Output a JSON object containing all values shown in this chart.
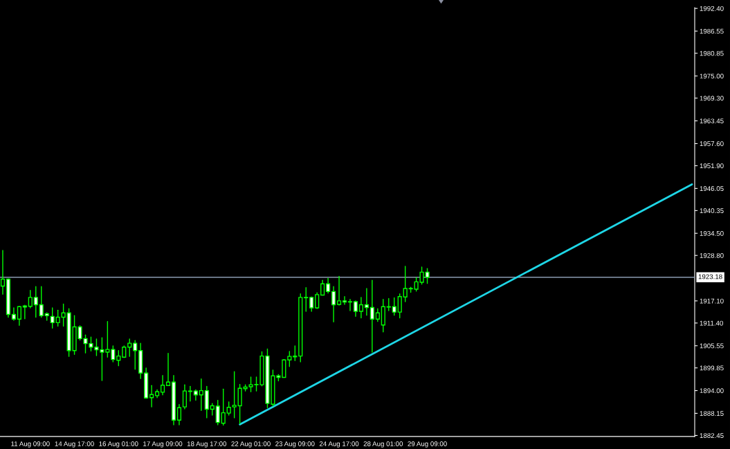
{
  "chart_data": {
    "type": "candlestick",
    "color": "#00ff00",
    "categories": [
      null,
      null,
      null,
      null,
      null,
      "11 Aug 09:00",
      null,
      null,
      null,
      null,
      null,
      null,
      null,
      "14 Aug 17:00",
      null,
      null,
      null,
      null,
      null,
      null,
      null,
      "16 Aug 01:00",
      null,
      null,
      null,
      null,
      null,
      null,
      null,
      "17 Aug 09:00",
      null,
      null,
      null,
      null,
      null,
      null,
      null,
      "18 Aug 17:00",
      null,
      null,
      null,
      null,
      null,
      null,
      null,
      "22 Aug 01:00",
      null,
      null,
      null,
      null,
      null,
      null,
      null,
      "23 Aug 09:00",
      null,
      null,
      null,
      null,
      null,
      null,
      null,
      "24 Aug 17:00",
      null,
      null,
      null,
      null,
      null,
      null,
      null,
      "28 Aug 01:00",
      null,
      null,
      null,
      null,
      null,
      null,
      null,
      "29 Aug 09:00",
      null,
      null,
      null,
      null,
      null,
      null,
      null,
      null,
      null,
      null,
      null,
      null,
      null,
      null,
      null,
      null,
      null,
      null,
      null,
      null,
      null,
      null,
      null,
      null,
      null,
      null,
      null,
      null,
      null,
      null,
      null,
      null,
      null,
      null,
      null,
      null,
      null,
      null,
      null,
      null,
      null,
      null,
      null,
      null,
      null,
      null,
      null,
      null
    ],
    "ohlc": [
      [
        1920.9,
        1930.1,
        1918.8,
        1922.7
      ],
      [
        1922.7,
        1922.8,
        1912.9,
        1913.6
      ],
      [
        1913.6,
        1915.3,
        1912.1,
        1912.4
      ],
      [
        1912.4,
        1915.7,
        1910.8,
        1915.6
      ],
      [
        1915.8,
        1916.0,
        1912.5,
        1915.5
      ],
      [
        1915.7,
        1919.8,
        1915.3,
        1918.0
      ],
      [
        1918.0,
        1920.8,
        1912.9,
        1916.1
      ],
      [
        1916.1,
        1920.8,
        1912.9,
        1913.3
      ],
      [
        1913.8,
        1914.0,
        1912.1,
        1913.3
      ],
      [
        1913.1,
        1915.3,
        1910.1,
        1911.5
      ],
      [
        1911.5,
        1914.7,
        1910.6,
        1912.9
      ],
      [
        1912.9,
        1916.3,
        1910.6,
        1914.0
      ],
      [
        1914.0,
        1915.1,
        1902.8,
        1904.3
      ],
      [
        1904.3,
        1913.3,
        1903.3,
        1910.4
      ],
      [
        1910.4,
        1910.7,
        1907.0,
        1907.4
      ],
      [
        1907.4,
        1908.3,
        1903.7,
        1906.1
      ],
      [
        1906.1,
        1907.8,
        1904.2,
        1905.2
      ],
      [
        1905.2,
        1907.3,
        1903.0,
        1904.5
      ],
      [
        1904.5,
        1907.6,
        1896.6,
        1903.9
      ],
      [
        1903.9,
        1911.8,
        1902.6,
        1904.6
      ],
      [
        1904.6,
        1905.5,
        1901.4,
        1902.0
      ],
      [
        1901.8,
        1904.3,
        1900.4,
        1902.9
      ],
      [
        1902.6,
        1905.5,
        1902.5,
        1905.2
      ],
      [
        1905.2,
        1907.3,
        1902.8,
        1906.2
      ],
      [
        1906.2,
        1906.9,
        1899.5,
        1904.3
      ],
      [
        1904.3,
        1906.2,
        1897.1,
        1898.5
      ],
      [
        1898.5,
        1899.8,
        1892.0,
        1892.1
      ],
      [
        1892.2,
        1895.3,
        1889.8,
        1893.0
      ],
      [
        1892.7,
        1894.2,
        1892.2,
        1893.7
      ],
      [
        1893.6,
        1897.9,
        1892.9,
        1895.4
      ],
      [
        1895.3,
        1903.6,
        1895.3,
        1896.2
      ],
      [
        1896.2,
        1897.9,
        1885.2,
        1886.4
      ],
      [
        1886.4,
        1890.4,
        1885.2,
        1889.6
      ],
      [
        1889.8,
        1895.5,
        1889.3,
        1893.9
      ],
      [
        1893.8,
        1895.1,
        1891.3,
        1893.9
      ],
      [
        1893.9,
        1894.2,
        1891.5,
        1892.9
      ],
      [
        1892.9,
        1897.0,
        1888.9,
        1894.0
      ],
      [
        1894.0,
        1895.1,
        1887.0,
        1889.2
      ],
      [
        1889.2,
        1890.7,
        1887.7,
        1890.1
      ],
      [
        1890.0,
        1891.5,
        1885.2,
        1885.8
      ],
      [
        1885.6,
        1894.4,
        1885.1,
        1888.3
      ],
      [
        1888.2,
        1891.1,
        1887.7,
        1889.7
      ],
      [
        1889.8,
        1898.9,
        1887.0,
        1890.2
      ],
      [
        1890.1,
        1895.6,
        1885.5,
        1894.6
      ],
      [
        1894.5,
        1895.5,
        1893.9,
        1894.9
      ],
      [
        1895.0,
        1897.5,
        1893.7,
        1895.5
      ],
      [
        1895.5,
        1897.5,
        1893.9,
        1895.6
      ],
      [
        1895.5,
        1904.0,
        1895.2,
        1902.9
      ],
      [
        1902.9,
        1904.7,
        1889.6,
        1890.7
      ],
      [
        1890.5,
        1899.3,
        1890.0,
        1897.8
      ],
      [
        1897.8,
        1898.1,
        1896.5,
        1897.4
      ],
      [
        1897.4,
        1902.0,
        1897.4,
        1901.9
      ],
      [
        1901.9,
        1904.1,
        1900.2,
        1902.8
      ],
      [
        1902.7,
        1905.5,
        1901.7,
        1902.9
      ],
      [
        1902.9,
        1918.9,
        1901.4,
        1918.0
      ],
      [
        1917.9,
        1920.5,
        1914.4,
        1918.0
      ],
      [
        1918.0,
        1918.1,
        1914.4,
        1915.3
      ],
      [
        1915.3,
        1919.2,
        1915.1,
        1918.7
      ],
      [
        1918.6,
        1922.4,
        1918.6,
        1921.5
      ],
      [
        1921.5,
        1922.9,
        1919.1,
        1919.5
      ],
      [
        1919.5,
        1920.8,
        1911.7,
        1916.1
      ],
      [
        1916.2,
        1923.4,
        1916.0,
        1917.1
      ],
      [
        1917.1,
        1918.2,
        1916.2,
        1916.8
      ],
      [
        1916.9,
        1917.5,
        1914.6,
        1916.8
      ],
      [
        1916.9,
        1917.1,
        1913.1,
        1914.4
      ],
      [
        1914.4,
        1918.0,
        1912.7,
        1916.1
      ],
      [
        1916.1,
        1920.3,
        1913.4,
        1915.4
      ],
      [
        1915.4,
        1922.4,
        1903.9,
        1912.4
      ],
      [
        1912.4,
        1915.1,
        1911.8,
        1914.0
      ],
      [
        1910.9,
        1917.5,
        1909.1,
        1915.6
      ],
      [
        1915.5,
        1917.7,
        1914.6,
        1915.6
      ],
      [
        1915.6,
        1917.9,
        1913.4,
        1914.2
      ],
      [
        1914.2,
        1918.9,
        1912.7,
        1918.2
      ],
      [
        1918.1,
        1926.0,
        1916.9,
        1920.3
      ],
      [
        1920.3,
        1920.6,
        1919.3,
        1920.2
      ],
      [
        1920.1,
        1923.1,
        1919.6,
        1922.0
      ],
      [
        1921.9,
        1925.8,
        1921.4,
        1924.5
      ],
      [
        1924.5,
        1925.4,
        1921.6,
        1923.18
      ],
      null,
      null,
      null,
      null,
      null,
      null,
      null,
      null,
      null,
      null,
      null,
      null,
      null,
      null,
      null,
      null,
      null,
      null,
      null,
      null,
      null,
      null,
      null,
      null,
      null,
      null,
      null,
      null,
      null,
      null,
      null,
      null,
      null,
      null,
      null,
      null,
      null,
      null,
      null,
      null,
      null,
      null,
      null,
      null,
      null,
      null,
      null,
      null
    ],
    "series": [
      {
        "type": "line",
        "color": "#1ed6e6",
        "values": [
          null,
          null,
          null,
          null,
          null,
          null,
          null,
          null,
          null,
          null,
          null,
          null,
          null,
          null,
          null,
          null,
          null,
          null,
          null,
          null,
          null,
          null,
          null,
          null,
          null,
          null,
          null,
          null,
          null,
          null,
          null,
          null,
          null,
          null,
          null,
          null,
          null,
          null,
          null,
          null,
          null,
          null,
          null,
          1885.3,
          null,
          null,
          null,
          null,
          null,
          null,
          null,
          null,
          null,
          null,
          null,
          null,
          null,
          null,
          null,
          null,
          null,
          null,
          null,
          null,
          null,
          null,
          null,
          null,
          null,
          null,
          null,
          null,
          null,
          null,
          null,
          null,
          null,
          null,
          null,
          null,
          null,
          null,
          null,
          null,
          null,
          null,
          null,
          null,
          null,
          null,
          null,
          null,
          null,
          null,
          null,
          null,
          null,
          null,
          null,
          null,
          null,
          null,
          null,
          null,
          null,
          null,
          null,
          null,
          null,
          null,
          null,
          null,
          null,
          null,
          null,
          null,
          null,
          null,
          null,
          null,
          null,
          null,
          null,
          null,
          null,
          1947.1
        ]
      }
    ],
    "ref_lines": [
      {
        "axis": "y",
        "value": 1923.18,
        "label": "1923.18",
        "color": "#8a9bb0"
      }
    ],
    "ylim": [
      1882.2,
      1992.6
    ],
    "yticks": [
      {
        "value": 1882.45,
        "label": "1882.45"
      },
      {
        "value": 1888.15,
        "label": "1888.15"
      },
      {
        "value": 1894.0,
        "label": "1894.00"
      },
      {
        "value": 1899.85,
        "label": "1899.85"
      },
      {
        "value": 1905.55,
        "label": "1905.55"
      },
      {
        "value": 1911.4,
        "label": "1911.40"
      },
      {
        "value": 1917.1,
        "label": "1917.10"
      },
      {
        "value": 1928.8,
        "label": "1928.80"
      },
      {
        "value": 1934.5,
        "label": "1934.50"
      },
      {
        "value": 1940.35,
        "label": "1940.35"
      },
      {
        "value": 1946.05,
        "label": "1946.05"
      },
      {
        "value": 1951.9,
        "label": "1951.90"
      },
      {
        "value": 1957.6,
        "label": "1957.60"
      },
      {
        "value": 1963.45,
        "label": "1963.45"
      },
      {
        "value": 1969.3,
        "label": "1969.30"
      },
      {
        "value": 1975.0,
        "label": "1975.00"
      },
      {
        "value": 1980.85,
        "label": "1980.85"
      },
      {
        "value": 1986.55,
        "label": "1986.55"
      },
      {
        "value": 1992.4,
        "label": "1992.40"
      }
    ],
    "grid": false
  }
}
